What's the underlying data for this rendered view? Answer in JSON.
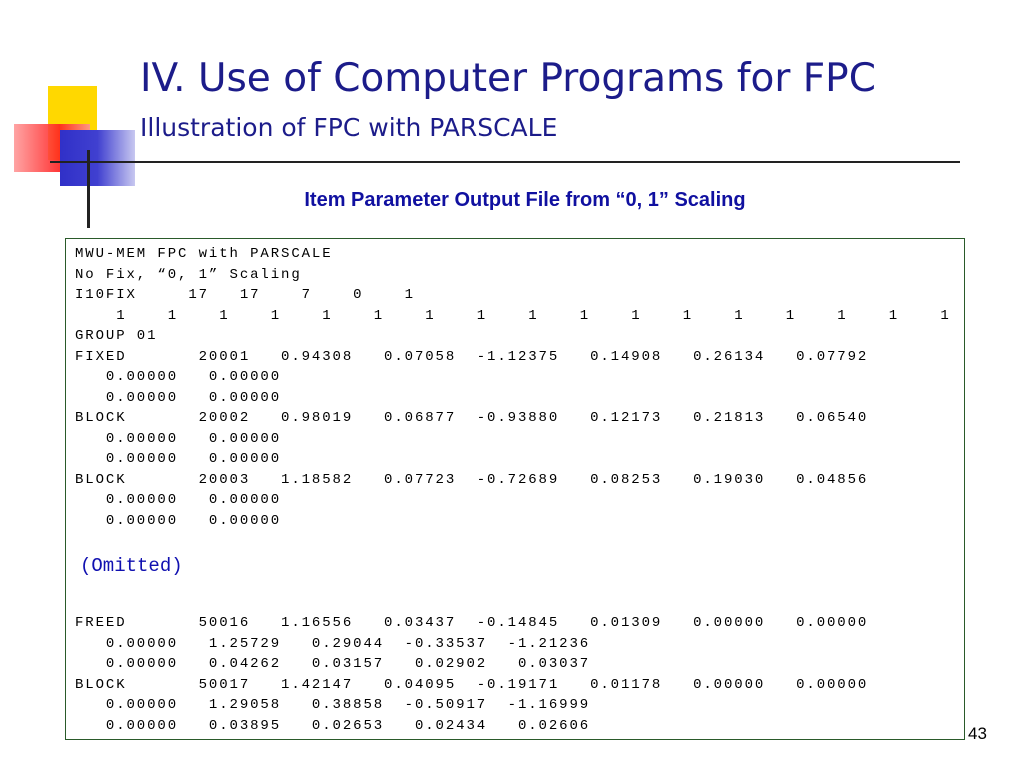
{
  "header": {
    "title": "IV. Use of Computer Programs for FPC",
    "subtitle": "Illustration of FPC with PARSCALE"
  },
  "heading": "Item Parameter Output File from “0, 1” Scaling",
  "output": {
    "lines_top": [
      "MWU-MEM FPC with PARSCALE",
      "No Fix, “0, 1” Scaling",
      "I10FIX     17   17    7    0    1",
      "    1    1    1    1    1    1    1    1    1    1    1    1    1    1    1    1    1",
      "GROUP 01",
      "FIXED       20001   0.94308   0.07058  -1.12375   0.14908   0.26134   0.07792",
      "   0.00000   0.00000",
      "   0.00000   0.00000",
      "BLOCK       20002   0.98019   0.06877  -0.93880   0.12173   0.21813   0.06540",
      "   0.00000   0.00000",
      "   0.00000   0.00000",
      "BLOCK       20003   1.18582   0.07723  -0.72689   0.08253   0.19030   0.04856",
      "   0.00000   0.00000",
      "   0.00000   0.00000"
    ],
    "omitted": "(Omitted)",
    "lines_bottom": [
      "FREED       50016   1.16556   0.03437  -0.14845   0.01309   0.00000   0.00000",
      "   0.00000   1.25729   0.29044  -0.33537  -1.21236",
      "   0.00000   0.04262   0.03157   0.02902   0.03037",
      "BLOCK       50017   1.42147   0.04095  -0.19171   0.01178   0.00000   0.00000",
      "   0.00000   1.29058   0.38858  -0.50917  -1.16999",
      "   0.00000   0.03895   0.02653   0.02434   0.02606"
    ]
  },
  "page_number": "43"
}
